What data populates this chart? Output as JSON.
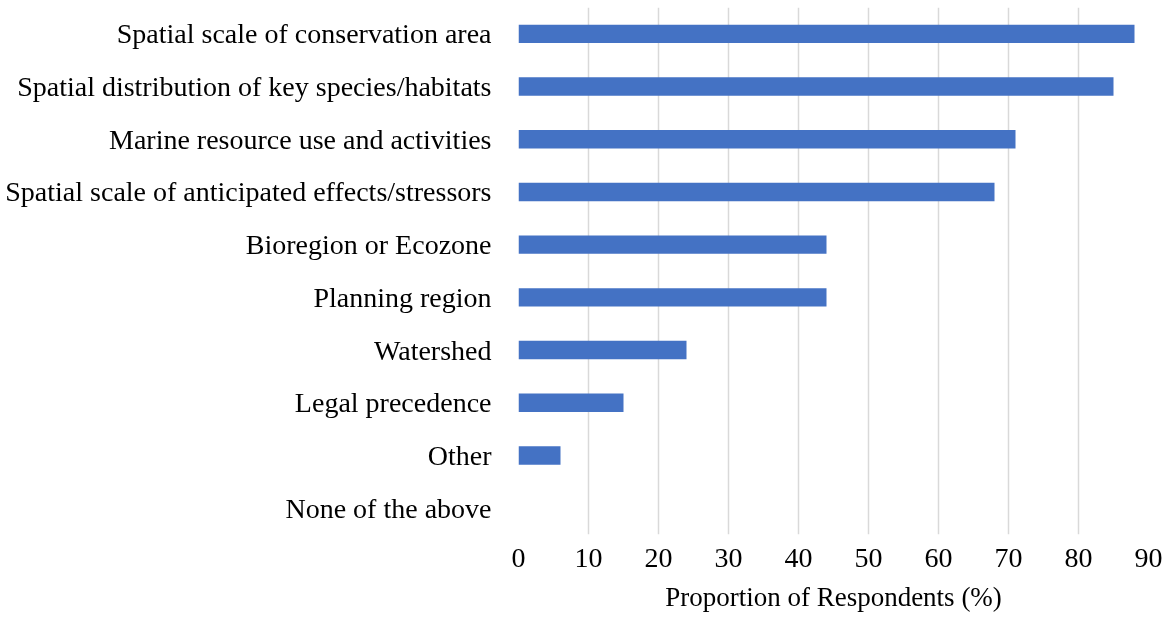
{
  "chart_data": {
    "type": "bar",
    "orientation": "horizontal",
    "categories": [
      "Spatial scale of conservation area",
      "Spatial distribution of key species/habitats",
      "Marine resource use and activities",
      "Spatial scale of anticipated effects/stressors",
      "Bioregion or Ecozone",
      "Planning region",
      "Watershed",
      "Legal precedence",
      "Other",
      "None of the above"
    ],
    "values": [
      88,
      85,
      71,
      68,
      44,
      44,
      24,
      15,
      6,
      0
    ],
    "color": "#4472c4",
    "xlim": [
      0,
      90
    ],
    "xticks": [
      0,
      10,
      20,
      30,
      40,
      50,
      60,
      70,
      80,
      90
    ],
    "xlabel": "Proportion of Respondents (%)",
    "grid": "x"
  }
}
